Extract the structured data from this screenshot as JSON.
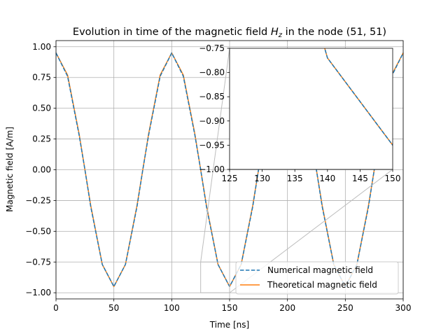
{
  "chart_data": {
    "type": "line",
    "title_prefix": "Evolution in time of the magnetic field ",
    "title_var": "H",
    "title_sub": "z",
    "title_suffix": " in the node (51, 51)",
    "xlabel": "Time [ns]",
    "ylabel": "Magnetic field [A/m]",
    "xlim": [
      0,
      300
    ],
    "ylim": [
      -1.05,
      1.05
    ],
    "xticks": [
      0,
      50,
      100,
      150,
      200,
      250,
      300
    ],
    "xtick_labels": [
      "0",
      "50",
      "100",
      "150",
      "200",
      "250",
      "300"
    ],
    "yticks": [
      1.0,
      0.75,
      0.5,
      0.25,
      0.0,
      -0.25,
      -0.5,
      -0.75,
      -1.0
    ],
    "ytick_labels": [
      "1.00",
      "0.75",
      "0.50",
      "0.25",
      "0.00",
      "−0.25",
      "−0.50",
      "−0.75",
      "−1.00"
    ],
    "grid": true,
    "legend_position": "lower right",
    "series": [
      {
        "name": "Numerical magnetic field",
        "color": "#1f77b4",
        "style": "dashed",
        "x": [
          0,
          10,
          20,
          25,
          30,
          40,
          50,
          60,
          70,
          75,
          80,
          90,
          100,
          110,
          120,
          125,
          130,
          140,
          150,
          160,
          170,
          175,
          180,
          190,
          200,
          210,
          220,
          225,
          230,
          240,
          250,
          260,
          270,
          275,
          280,
          290,
          300
        ],
        "y": [
          0.95,
          0.76,
          0.28,
          0.0,
          -0.3,
          -0.77,
          -0.95,
          -0.77,
          -0.3,
          0.0,
          0.28,
          0.76,
          0.95,
          0.76,
          0.28,
          0.0,
          -0.3,
          -0.77,
          -0.95,
          -0.77,
          -0.3,
          0.0,
          0.28,
          0.76,
          0.95,
          0.76,
          0.28,
          0.0,
          -0.3,
          -0.77,
          -0.95,
          -0.77,
          -0.3,
          0.0,
          0.28,
          0.76,
          0.95
        ]
      },
      {
        "name": "Theoretical magnetic field",
        "color": "#ff7f0e",
        "style": "solid",
        "x": [
          0,
          10,
          20,
          25,
          30,
          40,
          50,
          60,
          70,
          75,
          80,
          90,
          100,
          110,
          120,
          125,
          130,
          140,
          150,
          160,
          170,
          175,
          180,
          190,
          200,
          210,
          220,
          225,
          230,
          240,
          250,
          260,
          270,
          275,
          280,
          290,
          300
        ],
        "y": [
          0.95,
          0.77,
          0.29,
          0.0,
          -0.29,
          -0.77,
          -0.95,
          -0.77,
          -0.29,
          0.0,
          0.29,
          0.77,
          0.95,
          0.77,
          0.29,
          0.0,
          -0.29,
          -0.77,
          -0.95,
          -0.77,
          -0.29,
          0.0,
          0.29,
          0.77,
          0.95,
          0.77,
          0.29,
          0.0,
          -0.29,
          -0.77,
          -0.95,
          -0.77,
          -0.29,
          0.0,
          0.29,
          0.77,
          0.95
        ]
      }
    ],
    "inset": {
      "xlim": [
        125,
        150
      ],
      "ylim": [
        -1.0,
        -0.75
      ],
      "xticks": [
        125,
        130,
        135,
        140,
        145,
        150
      ],
      "xtick_labels": [
        "125",
        "130",
        "135",
        "140",
        "145",
        "150"
      ],
      "yticks": [
        -0.75,
        -0.8,
        -0.85,
        -0.9,
        -0.95,
        -1.0
      ],
      "ytick_labels": [
        "−0.75",
        "−0.80",
        "−0.85",
        "−0.90",
        "−0.95",
        "−1.00"
      ],
      "grid": false
    }
  }
}
